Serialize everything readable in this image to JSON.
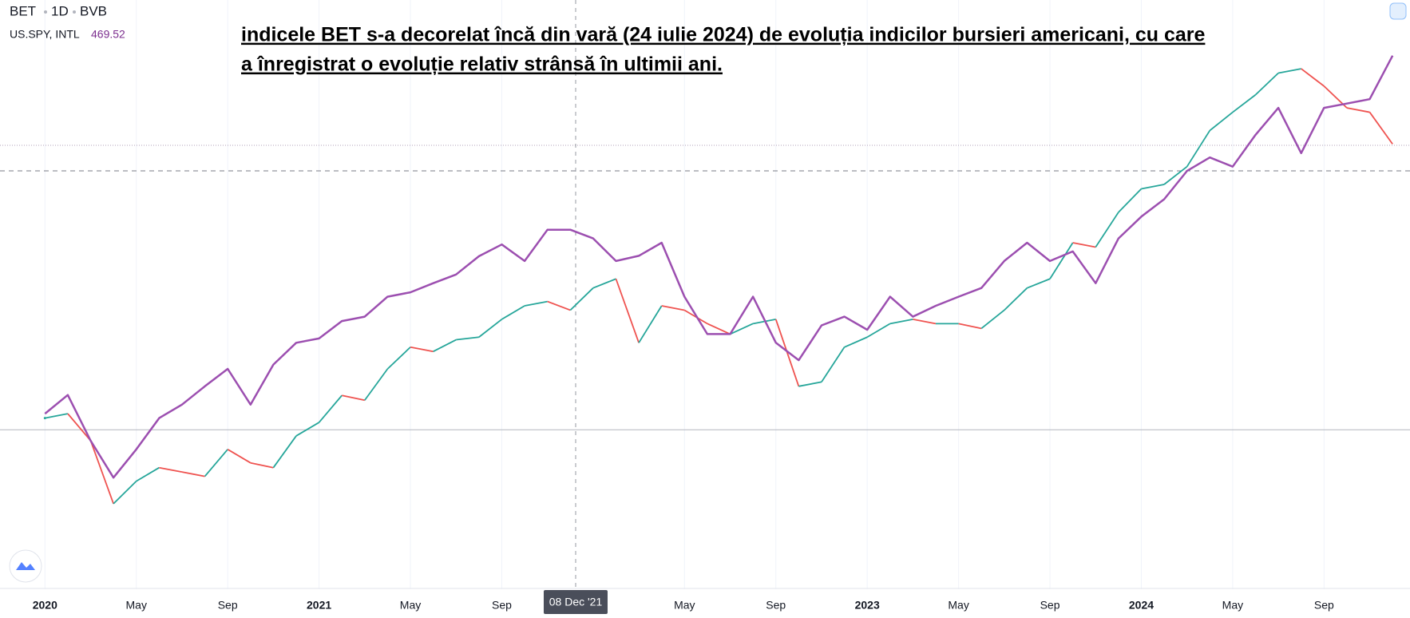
{
  "header": {
    "symbol": "BET",
    "interval": "1D",
    "exchange": "BVB",
    "compare": "US.SPY, INTL",
    "compare_value": "469.52"
  },
  "annotation": [
    "indicele BET s-a decorelat încă din vară (24 iulie 2024) de evoluția indicilor bursieri americani, cu care",
    "a înregistrat o evoluție relativ strânsă în ultimii ani."
  ],
  "chart_data": {
    "type": "line",
    "crosshair_label": "08 Dec '21",
    "x": [
      "2020-01",
      "2020-02",
      "2020-03",
      "2020-04",
      "2020-05",
      "2020-06",
      "2020-07",
      "2020-08",
      "2020-09",
      "2020-10",
      "2020-11",
      "2020-12",
      "2021-01",
      "2021-02",
      "2021-03",
      "2021-04",
      "2021-05",
      "2021-06",
      "2021-07",
      "2021-08",
      "2021-09",
      "2021-10",
      "2021-11",
      "2021-12",
      "2022-01",
      "2022-02",
      "2022-03",
      "2022-04",
      "2022-05",
      "2022-06",
      "2022-07",
      "2022-08",
      "2022-09",
      "2022-10",
      "2022-11",
      "2022-12",
      "2023-01",
      "2023-02",
      "2023-03",
      "2023-04",
      "2023-05",
      "2023-06",
      "2023-07",
      "2023-08",
      "2023-09",
      "2023-10",
      "2023-11",
      "2023-12",
      "2024-01",
      "2024-02",
      "2024-03",
      "2024-04",
      "2024-05",
      "2024-06",
      "2024-07",
      "2024-08",
      "2024-09",
      "2024-10",
      "2024-11",
      "2024-12"
    ],
    "xticks": [
      {
        "value": "2020-01",
        "label": "2020"
      },
      {
        "value": "2020-05",
        "label": "May"
      },
      {
        "value": "2020-09",
        "label": "Sep"
      },
      {
        "value": "2021-01",
        "label": "2021"
      },
      {
        "value": "2021-05",
        "label": "May"
      },
      {
        "value": "2021-09",
        "label": "Sep"
      },
      {
        "value": "2022-05",
        "label": "May"
      },
      {
        "value": "2022-09",
        "label": "Sep"
      },
      {
        "value": "2023-01",
        "label": "2023"
      },
      {
        "value": "2023-05",
        "label": "May"
      },
      {
        "value": "2023-09",
        "label": "Sep"
      },
      {
        "value": "2024-01",
        "label": "2024"
      },
      {
        "value": "2024-05",
        "label": "May"
      },
      {
        "value": "2024-09",
        "label": "Sep"
      }
    ],
    "ylim": [
      -36.6,
      98.8
    ],
    "series": [
      {
        "name": "US.SPY",
        "color": "#9c4fb0",
        "values": [
          3.7,
          8,
          -2.5,
          -11,
          -4.5,
          2.7,
          5.8,
          10,
          14,
          5.8,
          15,
          20,
          21,
          25,
          26,
          30.6,
          31.6,
          33.7,
          35.7,
          39.9,
          42.6,
          38.8,
          46,
          46,
          44,
          38.8,
          40,
          43,
          30.6,
          22,
          22,
          30.6,
          20,
          16,
          24,
          26,
          23,
          30.6,
          26,
          28.5,
          30.6,
          32.6,
          38.8,
          43,
          38.8,
          41,
          33.7,
          44,
          49,
          53,
          59.5,
          62.6,
          60.5,
          67.8,
          74,
          63.6,
          74,
          75,
          76,
          86
        ]
      },
      {
        "name": "BET",
        "up_color": "#26a69a",
        "down_color": "#ef5350",
        "values": [
          2.7,
          3.7,
          -2.5,
          -17,
          -11.8,
          -8.7,
          -9.7,
          -10.7,
          -4.5,
          -7.6,
          -8.7,
          -1.4,
          1.7,
          7.9,
          6.8,
          14,
          19,
          18,
          20.7,
          21.3,
          25.4,
          28.5,
          29.5,
          27.5,
          32.6,
          34.7,
          20,
          28.5,
          27.5,
          24.4,
          22,
          24.4,
          25.4,
          10,
          11,
          19,
          21.3,
          24.4,
          25.4,
          24.4,
          24.4,
          23.3,
          27.5,
          32.6,
          34.7,
          43,
          42,
          50,
          55.4,
          56.4,
          60.5,
          68.8,
          73,
          77,
          82,
          83,
          79,
          74,
          73,
          65.7
        ]
      }
    ]
  }
}
